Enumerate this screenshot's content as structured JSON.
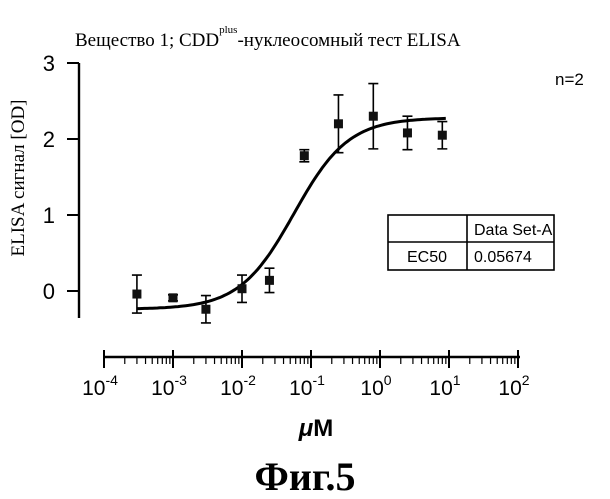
{
  "figure_caption": "Фиг.5",
  "chart_data": {
    "type": "scatter",
    "title_main": "Вещество 1; CDD",
    "title_superscript": "plus",
    "title_rest": "-нуклеосомный тест ELISA",
    "xlabel_prefix": "μ",
    "xlabel_unit": "M",
    "ylabel": "ELISA сигнал [OD]",
    "annotation": "n=2",
    "x_scale": "log",
    "xlim": [
      0.0001,
      100
    ],
    "ylim": [
      -0.35,
      3.0
    ],
    "x_ticks": [
      {
        "base": "10",
        "exp": "-4",
        "value": 0.0001
      },
      {
        "base": "10",
        "exp": "-3",
        "value": 0.001
      },
      {
        "base": "10",
        "exp": "-2",
        "value": 0.01
      },
      {
        "base": "10",
        "exp": "-1",
        "value": 0.1
      },
      {
        "base": "10",
        "exp": "0",
        "value": 1
      },
      {
        "base": "10",
        "exp": "1",
        "value": 10
      },
      {
        "base": "10",
        "exp": "2",
        "value": 100
      }
    ],
    "y_ticks": [
      {
        "label": "0",
        "value": 0
      },
      {
        "label": "1",
        "value": 1
      },
      {
        "label": "2",
        "value": 2
      },
      {
        "label": "3",
        "value": 3
      }
    ],
    "points": [
      {
        "x": 0.0003,
        "y": -0.04,
        "err": 0.25
      },
      {
        "x": 0.001,
        "y": -0.09,
        "err": 0.04
      },
      {
        "x": 0.003,
        "y": -0.24,
        "err": 0.18
      },
      {
        "x": 0.01,
        "y": 0.03,
        "err": 0.18
      },
      {
        "x": 0.025,
        "y": 0.14,
        "err": 0.16
      },
      {
        "x": 0.08,
        "y": 1.78,
        "err": 0.08
      },
      {
        "x": 0.25,
        "y": 2.2,
        "err": 0.38
      },
      {
        "x": 0.8,
        "y": 2.3,
        "err": 0.43
      },
      {
        "x": 2.5,
        "y": 2.08,
        "err": 0.22
      },
      {
        "x": 8,
        "y": 2.05,
        "err": 0.18
      }
    ],
    "fit": {
      "bottom": -0.24,
      "top": 2.28,
      "ec50": 0.05674,
      "hill": 1.1
    },
    "ec50_table": {
      "header": [
        "",
        "Data Set-A"
      ],
      "rows": [
        [
          "EC50",
          "0.05674"
        ]
      ]
    }
  }
}
